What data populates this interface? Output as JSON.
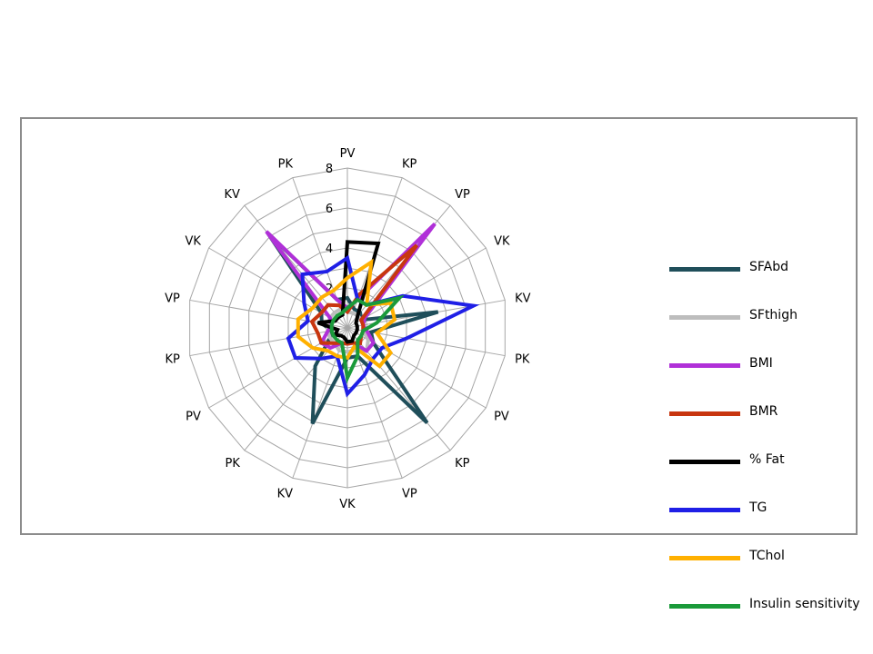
{
  "chart_data": {
    "type": "radar",
    "categories": [
      "PV",
      "KP",
      "VP",
      "VK",
      "KV",
      "PK",
      "PV",
      "KP",
      "VP",
      "VK",
      "KV",
      "PK",
      "PV",
      "KP",
      "VP",
      "VK",
      "KV",
      "PK"
    ],
    "rlim": [
      0,
      8
    ],
    "rticks": [
      2,
      4,
      6,
      8
    ],
    "grid": true,
    "legend_position": "right",
    "series": [
      {
        "name": "SFAbd",
        "color": "#1f4e5a",
        "values": [
          1.5,
          1.0,
          1.0,
          0.8,
          4.6,
          1.2,
          1.5,
          6.2,
          1.5,
          1.5,
          5.1,
          2.5,
          1.0,
          0.8,
          1.3,
          1.5,
          6.2,
          1.5
        ]
      },
      {
        "name": "SFthigh",
        "color": "#bdbdbd",
        "values": [
          0.8,
          0.8,
          0.8,
          0.8,
          0.8,
          0.8,
          1.2,
          1.5,
          1.2,
          1.2,
          1.2,
          1.0,
          1.0,
          1.0,
          1.0,
          1.0,
          1.0,
          1.0
        ]
      },
      {
        "name": "BMI",
        "color": "#b030d8",
        "values": [
          1.0,
          1.5,
          6.8,
          1.0,
          0.8,
          1.0,
          1.5,
          1.5,
          0.8,
          0.8,
          0.8,
          1.3,
          1.5,
          1.0,
          0.8,
          1.0,
          6.3,
          1.5
        ]
      },
      {
        "name": "BMR",
        "color": "#c8360f",
        "values": [
          0.8,
          1.8,
          5.4,
          0.8,
          0.8,
          0.8,
          0.8,
          1.0,
          0.8,
          0.8,
          0.8,
          1.0,
          1.5,
          1.5,
          1.8,
          1.5,
          1.5,
          1.2
        ]
      },
      {
        "name": "% Fat",
        "color": "#000000",
        "values": [
          4.3,
          4.5,
          0.8,
          0.5,
          0.5,
          0.5,
          0.5,
          0.5,
          0.7,
          0.7,
          0.5,
          0.5,
          0.7,
          0.5,
          1.5,
          0.7,
          0.7,
          0.7
        ]
      },
      {
        "name": "TG",
        "color": "#1f1fe6",
        "values": [
          3.5,
          1.5,
          1.5,
          3.2,
          6.4,
          3.0,
          2.0,
          2.0,
          2.5,
          3.3,
          1.5,
          2.0,
          3.0,
          3.0,
          2.0,
          2.5,
          3.5,
          3.0
        ]
      },
      {
        "name": "TChol",
        "color": "#ffb000",
        "values": [
          2.5,
          3.5,
          1.5,
          2.5,
          2.4,
          1.5,
          2.5,
          2.5,
          1.0,
          1.5,
          1.5,
          1.5,
          2.0,
          2.5,
          2.5,
          2.0,
          2.0,
          2.0
        ]
      },
      {
        "name": "Insulin sensitivity",
        "color": "#1a9a3a",
        "values": [
          1.0,
          1.5,
          1.5,
          3.0,
          1.5,
          0.8,
          0.8,
          0.8,
          1.5,
          2.5,
          0.8,
          0.8,
          0.8,
          0.8,
          0.8,
          0.8,
          0.8,
          0.8
        ]
      }
    ]
  }
}
